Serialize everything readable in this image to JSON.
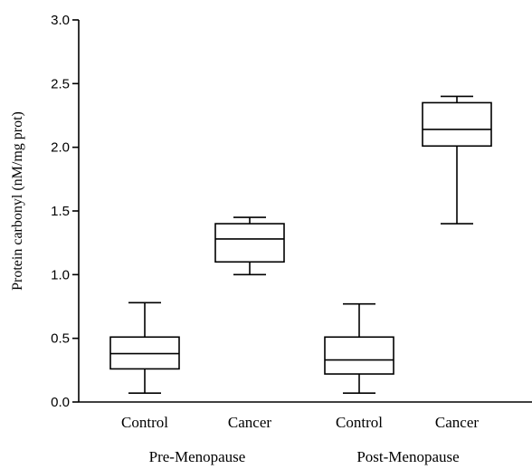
{
  "chart_data": {
    "type": "boxplot",
    "ylabel": "Protein carbonyl (nM/mg prot)",
    "ylim": [
      0.0,
      3.0
    ],
    "yticks": [
      "0.0",
      "0.5",
      "1.0",
      "1.5",
      "2.0",
      "2.5",
      "3.0"
    ],
    "groups": [
      {
        "label": "Pre-Menopause",
        "boxes": [
          {
            "category": "Control",
            "min": 0.07,
            "q1": 0.26,
            "median": 0.38,
            "q3": 0.51,
            "max": 0.78
          },
          {
            "category": "Cancer",
            "min": 1.0,
            "q1": 1.1,
            "median": 1.28,
            "q3": 1.4,
            "max": 1.45
          }
        ]
      },
      {
        "label": "Post-Menopause",
        "boxes": [
          {
            "category": "Control",
            "min": 0.07,
            "q1": 0.22,
            "median": 0.33,
            "q3": 0.51,
            "max": 0.77
          },
          {
            "category": "Cancer",
            "min": 1.4,
            "q1": 2.01,
            "median": 2.14,
            "q3": 2.35,
            "max": 2.4
          }
        ]
      }
    ]
  }
}
